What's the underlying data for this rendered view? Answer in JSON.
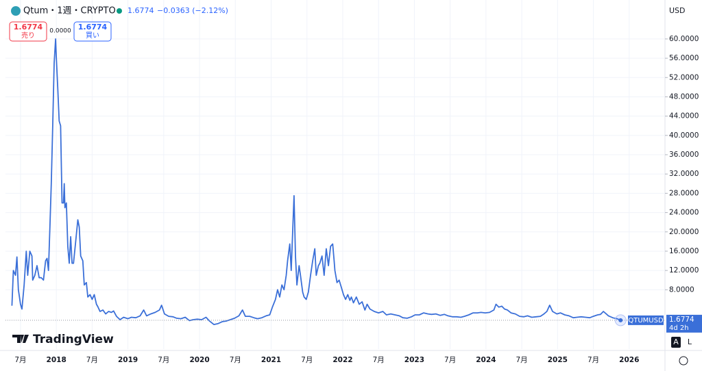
{
  "chart_data": {
    "type": "line",
    "title": "Qtum・1週・CRYPTO",
    "x": [
      2017.38,
      2017.4,
      2017.43,
      2017.45,
      2017.47,
      2017.5,
      2017.52,
      2017.55,
      2017.58,
      2017.6,
      2017.63,
      2017.66,
      2017.67,
      2017.7,
      2017.73,
      2017.76,
      2017.79,
      2017.82,
      2017.85,
      2017.87,
      2017.89,
      2017.91,
      2017.93,
      2017.95,
      2017.97,
      2017.99,
      2018.0,
      2018.02,
      2018.04,
      2018.06,
      2018.08,
      2018.1,
      2018.11,
      2018.12,
      2018.14,
      2018.16,
      2018.18,
      2018.2,
      2018.22,
      2018.24,
      2018.27,
      2018.3,
      2018.32,
      2018.34,
      2018.37,
      2018.39,
      2018.42,
      2018.44,
      2018.47,
      2018.5,
      2018.53,
      2018.56,
      2018.58,
      2018.61,
      2018.65,
      2018.69,
      2018.73,
      2018.77,
      2018.8,
      2018.84,
      2018.89,
      2018.94,
      2019.0,
      2019.05,
      2019.11,
      2019.17,
      2019.22,
      2019.26,
      2019.32,
      2019.38,
      2019.44,
      2019.47,
      2019.51,
      2019.57,
      2019.63,
      2019.68,
      2019.74,
      2019.8,
      2019.86,
      2019.91,
      2019.97,
      2020.03,
      2020.09,
      2020.14,
      2020.2,
      2020.26,
      2020.32,
      2020.37,
      2020.43,
      2020.49,
      2020.55,
      2020.6,
      2020.64,
      2020.7,
      2020.76,
      2020.81,
      2020.87,
      2020.93,
      2020.98,
      2021.02,
      2021.06,
      2021.09,
      2021.12,
      2021.15,
      2021.18,
      2021.21,
      2021.23,
      2021.26,
      2021.28,
      2021.3,
      2021.32,
      2021.34,
      2021.36,
      2021.39,
      2021.41,
      2021.44,
      2021.46,
      2021.49,
      2021.52,
      2021.55,
      2021.58,
      2021.61,
      2021.63,
      2021.66,
      2021.68,
      2021.71,
      2021.74,
      2021.77,
      2021.8,
      2021.83,
      2021.86,
      2021.88,
      2021.89,
      2021.92,
      2021.95,
      2021.98,
      2022.01,
      2022.04,
      2022.07,
      2022.1,
      2022.12,
      2022.15,
      2022.19,
      2022.23,
      2022.27,
      2022.31,
      2022.34,
      2022.38,
      2022.44,
      2022.5,
      2022.56,
      2022.61,
      2022.67,
      2022.73,
      2022.79,
      2022.84,
      2022.9,
      2022.96,
      2023.01,
      2023.07,
      2023.13,
      2023.19,
      2023.24,
      2023.3,
      2023.36,
      2023.42,
      2023.47,
      2023.53,
      2023.59,
      2023.65,
      2023.7,
      2023.76,
      2023.82,
      2023.88,
      2023.93,
      2023.99,
      2024.05,
      2024.11,
      2024.14,
      2024.18,
      2024.22,
      2024.26,
      2024.3,
      2024.35,
      2024.41,
      2024.47,
      2024.53,
      2024.58,
      2024.64,
      2024.7,
      2024.76,
      2024.81,
      2024.85,
      2024.89,
      2024.93,
      2024.99,
      2025.04,
      2025.1,
      2025.16,
      2025.22,
      2025.27,
      2025.33,
      2025.39,
      2025.45,
      2025.5,
      2025.56,
      2025.6,
      2025.64,
      2025.68,
      2025.71,
      2025.77,
      2025.83,
      2025.88
    ],
    "series": [
      {
        "name": "QTUMUSD",
        "color": "#3a6fd8",
        "values": [
          4.7,
          12,
          11,
          14.8,
          8,
          5,
          4,
          9,
          16,
          11,
          16,
          15,
          10,
          11,
          13,
          10.5,
          10.5,
          10,
          14,
          14.5,
          12,
          21,
          30,
          42,
          55,
          60,
          56,
          50,
          43,
          42,
          26,
          26,
          30,
          25,
          26,
          17,
          13.5,
          19,
          13.5,
          13.5,
          18,
          22.5,
          21,
          15,
          14,
          9,
          9.5,
          6.5,
          7,
          6,
          7,
          5,
          4.5,
          3.5,
          3.8,
          3,
          3.5,
          3.3,
          3.6,
          2.5,
          1.8,
          2.3,
          2,
          2.3,
          2.2,
          2.6,
          3.8,
          2.6,
          3,
          3.3,
          3.8,
          4.8,
          3,
          2.5,
          2.4,
          2.1,
          2,
          2.3,
          1.6,
          1.8,
          1.9,
          1.8,
          2.3,
          1.5,
          0.8,
          1,
          1.4,
          1.5,
          1.8,
          2.1,
          2.6,
          3.8,
          2.5,
          2.5,
          2.2,
          2,
          2.2,
          2.6,
          2.8,
          4.5,
          6,
          8,
          6.5,
          9,
          8,
          11,
          14,
          17.5,
          12,
          20,
          27.5,
          15,
          9,
          13,
          11,
          7.5,
          6.5,
          6,
          7.5,
          11,
          14,
          16.5,
          11,
          13,
          13.5,
          15,
          11,
          16.5,
          13,
          17,
          17.5,
          14,
          12,
          9.5,
          10,
          8.5,
          7,
          6,
          7,
          5.8,
          6.5,
          5.3,
          6.5,
          5,
          5.5,
          3.8,
          5,
          4,
          3.5,
          3.2,
          3.5,
          2.8,
          3,
          2.8,
          2.6,
          2.2,
          2.1,
          2.4,
          2.8,
          2.8,
          3.2,
          3,
          2.9,
          3,
          2.7,
          2.9,
          2.6,
          2.4,
          2.4,
          2.3,
          2.5,
          2.8,
          3.2,
          3.2,
          3.3,
          3.2,
          3.3,
          3.8,
          5,
          4.4,
          4.6,
          4,
          3.8,
          3.2,
          3,
          2.5,
          2.4,
          2.6,
          2.3,
          2.4,
          2.5,
          3,
          3.5,
          4.8,
          3.5,
          3,
          3.2,
          2.8,
          2.6,
          2.2,
          2.3,
          2.4,
          2.3,
          2.2,
          2.5,
          2.8,
          2.9,
          3.5,
          3,
          2.6,
          2.2,
          2,
          1.6774
        ]
      }
    ],
    "xlim": [
      2017.29,
      2026.5
    ],
    "xticks": [
      {
        "value": 2017.5,
        "label": "7月"
      },
      2018,
      {
        "value": 2018.5,
        "label": "7月"
      },
      2019,
      {
        "value": 2019.5,
        "label": "7月"
      },
      2020,
      {
        "value": 2020.5,
        "label": "7月"
      },
      2021,
      {
        "value": 2021.5,
        "label": "7月"
      },
      2022,
      {
        "value": 2022.5,
        "label": "7月"
      },
      2023,
      {
        "value": 2023.5,
        "label": "7月"
      },
      2024,
      {
        "value": 2024.5,
        "label": "7月"
      },
      2025,
      {
        "value": 2025.5,
        "label": "7月"
      },
      2026
    ],
    "ylim": [
      -4.3,
      64.1
    ],
    "yticks": [
      {
        "value": 8,
        "label": "8.0000"
      },
      {
        "value": 12,
        "label": "12.0000"
      },
      {
        "value": 16,
        "label": "16.0000"
      },
      {
        "value": 20,
        "label": "20.0000"
      },
      {
        "value": 24,
        "label": "24.0000"
      },
      {
        "value": 28,
        "label": "28.0000"
      },
      {
        "value": 32,
        "label": "32.0000"
      },
      {
        "value": 36,
        "label": "36.0000"
      },
      {
        "value": 40,
        "label": "40.0000"
      },
      {
        "value": 44,
        "label": "44.0000"
      },
      {
        "value": 48,
        "label": "48.0000"
      },
      {
        "value": 52,
        "label": "52.0000"
      },
      {
        "value": 56,
        "label": "56.0000"
      },
      {
        "value": 60,
        "label": "60.0000"
      }
    ],
    "grid": true
  },
  "ui": {
    "last": "1.6774",
    "change": "−0.0363 (−2.12%)",
    "currency": "USD",
    "sell_price": "1.6774",
    "sell": "売り",
    "spread": "0.0000",
    "buy_price": "1.6774",
    "buy": "買い",
    "brand": "TradingView",
    "tag_symbol": "QTUMUSD",
    "tag_price": "1.6774",
    "tag_time": "4d 2h",
    "auto": "A",
    "log": "L"
  }
}
